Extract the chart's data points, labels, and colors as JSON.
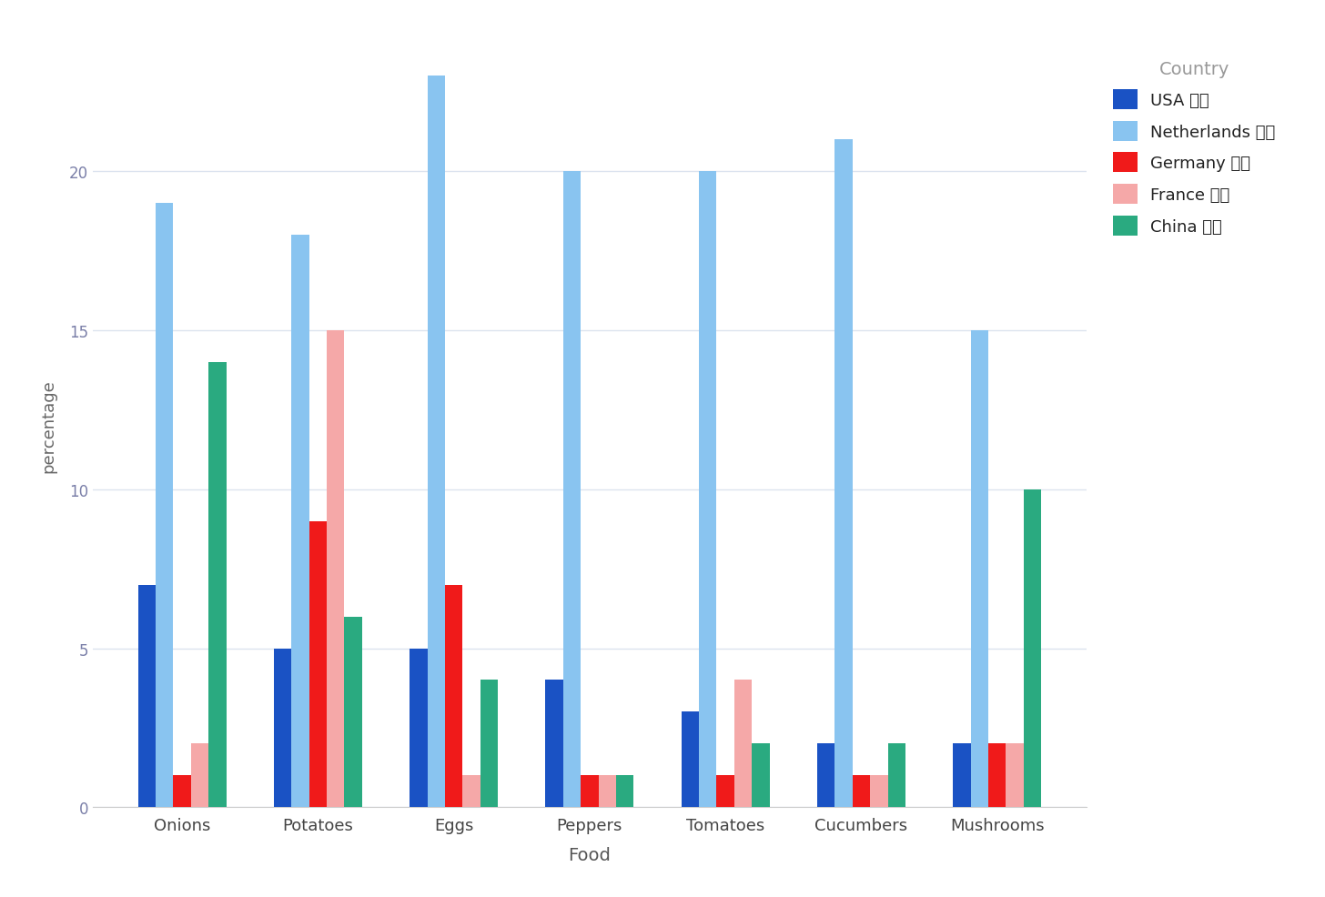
{
  "foods": [
    "Onions",
    "Potatoes",
    "Eggs",
    "Peppers",
    "Tomatoes",
    "Cucumbers",
    "Mushrooms"
  ],
  "countries": [
    "USA",
    "Netherlands",
    "Germany",
    "France",
    "China"
  ],
  "country_labels": [
    "USA 🇺🇸",
    "Netherlands 🇳🇱",
    "Germany 🇩🇪",
    "France 🇫🇷",
    "China 🇨🇳"
  ],
  "colors": {
    "USA": "#1a52c4",
    "Netherlands": "#89c4f0",
    "Germany": "#f01a1a",
    "France": "#f5a8a8",
    "China": "#2aaa80"
  },
  "data": {
    "USA": [
      7,
      5,
      5,
      4,
      3,
      2,
      2
    ],
    "Netherlands": [
      19,
      18,
      23,
      20,
      20,
      21,
      15
    ],
    "Germany": [
      1,
      9,
      7,
      1,
      1,
      1,
      2
    ],
    "France": [
      2,
      15,
      1,
      1,
      4,
      1,
      2
    ],
    "China": [
      14,
      6,
      4,
      1,
      2,
      2,
      10
    ]
  },
  "xlabel": "Food",
  "ylabel": "percentage",
  "legend_title": "Country",
  "ylim": [
    0,
    24
  ],
  "yticks": [
    0,
    5,
    10,
    15,
    20
  ],
  "background_color": "#ffffff",
  "grid_color": "#dce3ef",
  "bar_width": 0.13,
  "figsize": [
    14.56,
    9.87
  ],
  "dpi": 100
}
